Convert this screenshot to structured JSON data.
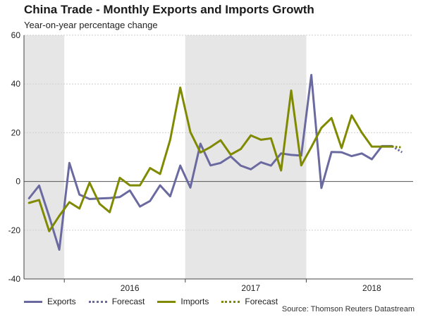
{
  "chart_data": {
    "type": "line",
    "title": "China Trade - Monthly Exports and Imports Growth",
    "subtitle": "Year-on-year percentage change",
    "ylim": [
      -40,
      60
    ],
    "yticks": [
      -40,
      -20,
      0,
      20,
      40,
      60
    ],
    "x_start": "2015-09",
    "x_year_labels": [
      {
        "label": "2016",
        "month_index": 10
      },
      {
        "label": "2017",
        "month_index": 22
      },
      {
        "label": "2018",
        "month_index": 34
      }
    ],
    "shaded_years": [
      "2015",
      "2017"
    ],
    "shade_color": "#e6e6e6",
    "series": [
      {
        "name": "Exports",
        "color": "#6a6aa0",
        "style": "solid",
        "x": [
          "2015-09",
          "2015-10",
          "2015-11",
          "2015-12",
          "2016-01",
          "2016-02",
          "2016-03",
          "2016-04",
          "2016-05",
          "2016-06",
          "2016-07",
          "2016-08",
          "2016-09",
          "2016-10",
          "2016-11",
          "2016-12",
          "2017-01",
          "2017-02",
          "2017-03",
          "2017-04",
          "2017-05",
          "2017-06",
          "2017-07",
          "2017-08",
          "2017-09",
          "2017-10",
          "2017-11",
          "2017-12",
          "2018-01",
          "2018-02",
          "2018-03",
          "2018-04",
          "2018-05",
          "2018-06",
          "2018-07",
          "2018-08",
          "2018-09"
        ],
        "values": [
          -6.9,
          -1.7,
          -14.4,
          -28.0,
          7.6,
          -5.4,
          -7.2,
          -7.0,
          -6.8,
          -6.4,
          -3.7,
          -10.3,
          -8.0,
          -1.6,
          -6.1,
          6.5,
          -2.5,
          15.5,
          6.6,
          7.6,
          10.3,
          6.5,
          5.0,
          7.9,
          6.5,
          11.5,
          10.9,
          10.6,
          43.7,
          -2.7,
          12.1,
          12.0,
          10.4,
          11.5,
          9.1,
          14.5,
          14.5
        ]
      },
      {
        "name": "Forecast",
        "color": "#6a6aa0",
        "style": "dotted",
        "x": [
          "2018-09",
          "2018-10"
        ],
        "values": [
          14.5,
          12.0
        ]
      },
      {
        "name": "Imports",
        "color": "#808a00",
        "style": "solid",
        "x": [
          "2015-09",
          "2015-10",
          "2015-11",
          "2015-12",
          "2016-01",
          "2016-02",
          "2016-03",
          "2016-04",
          "2016-05",
          "2016-06",
          "2016-07",
          "2016-08",
          "2016-09",
          "2016-10",
          "2016-11",
          "2016-12",
          "2017-01",
          "2017-02",
          "2017-03",
          "2017-04",
          "2017-05",
          "2017-06",
          "2017-07",
          "2017-08",
          "2017-09",
          "2017-10",
          "2017-11",
          "2017-12",
          "2018-01",
          "2018-02",
          "2018-03",
          "2018-04",
          "2018-05",
          "2018-06",
          "2018-07",
          "2018-08",
          "2018-09"
        ],
        "values": [
          -8.8,
          -7.6,
          -20.4,
          -14.1,
          -8.5,
          -11.1,
          -0.5,
          -9.2,
          -12.6,
          1.5,
          -1.6,
          -1.6,
          5.5,
          3.1,
          17.1,
          38.5,
          20.3,
          11.9,
          14.1,
          16.9,
          11.0,
          13.3,
          18.9,
          17.1,
          17.7,
          4.5,
          37.3,
          6.6,
          14.1,
          22.0,
          26.0,
          13.7,
          27.1,
          20.1,
          14.3,
          14.3,
          14.3
        ]
      },
      {
        "name": "Forecast",
        "color": "#808a00",
        "style": "dotted",
        "x": [
          "2018-09",
          "2018-10"
        ],
        "values": [
          14.3,
          14.0
        ]
      }
    ],
    "legend": {
      "position": "bottom-left"
    },
    "source": "Source: Thomson Reuters Datastream"
  }
}
